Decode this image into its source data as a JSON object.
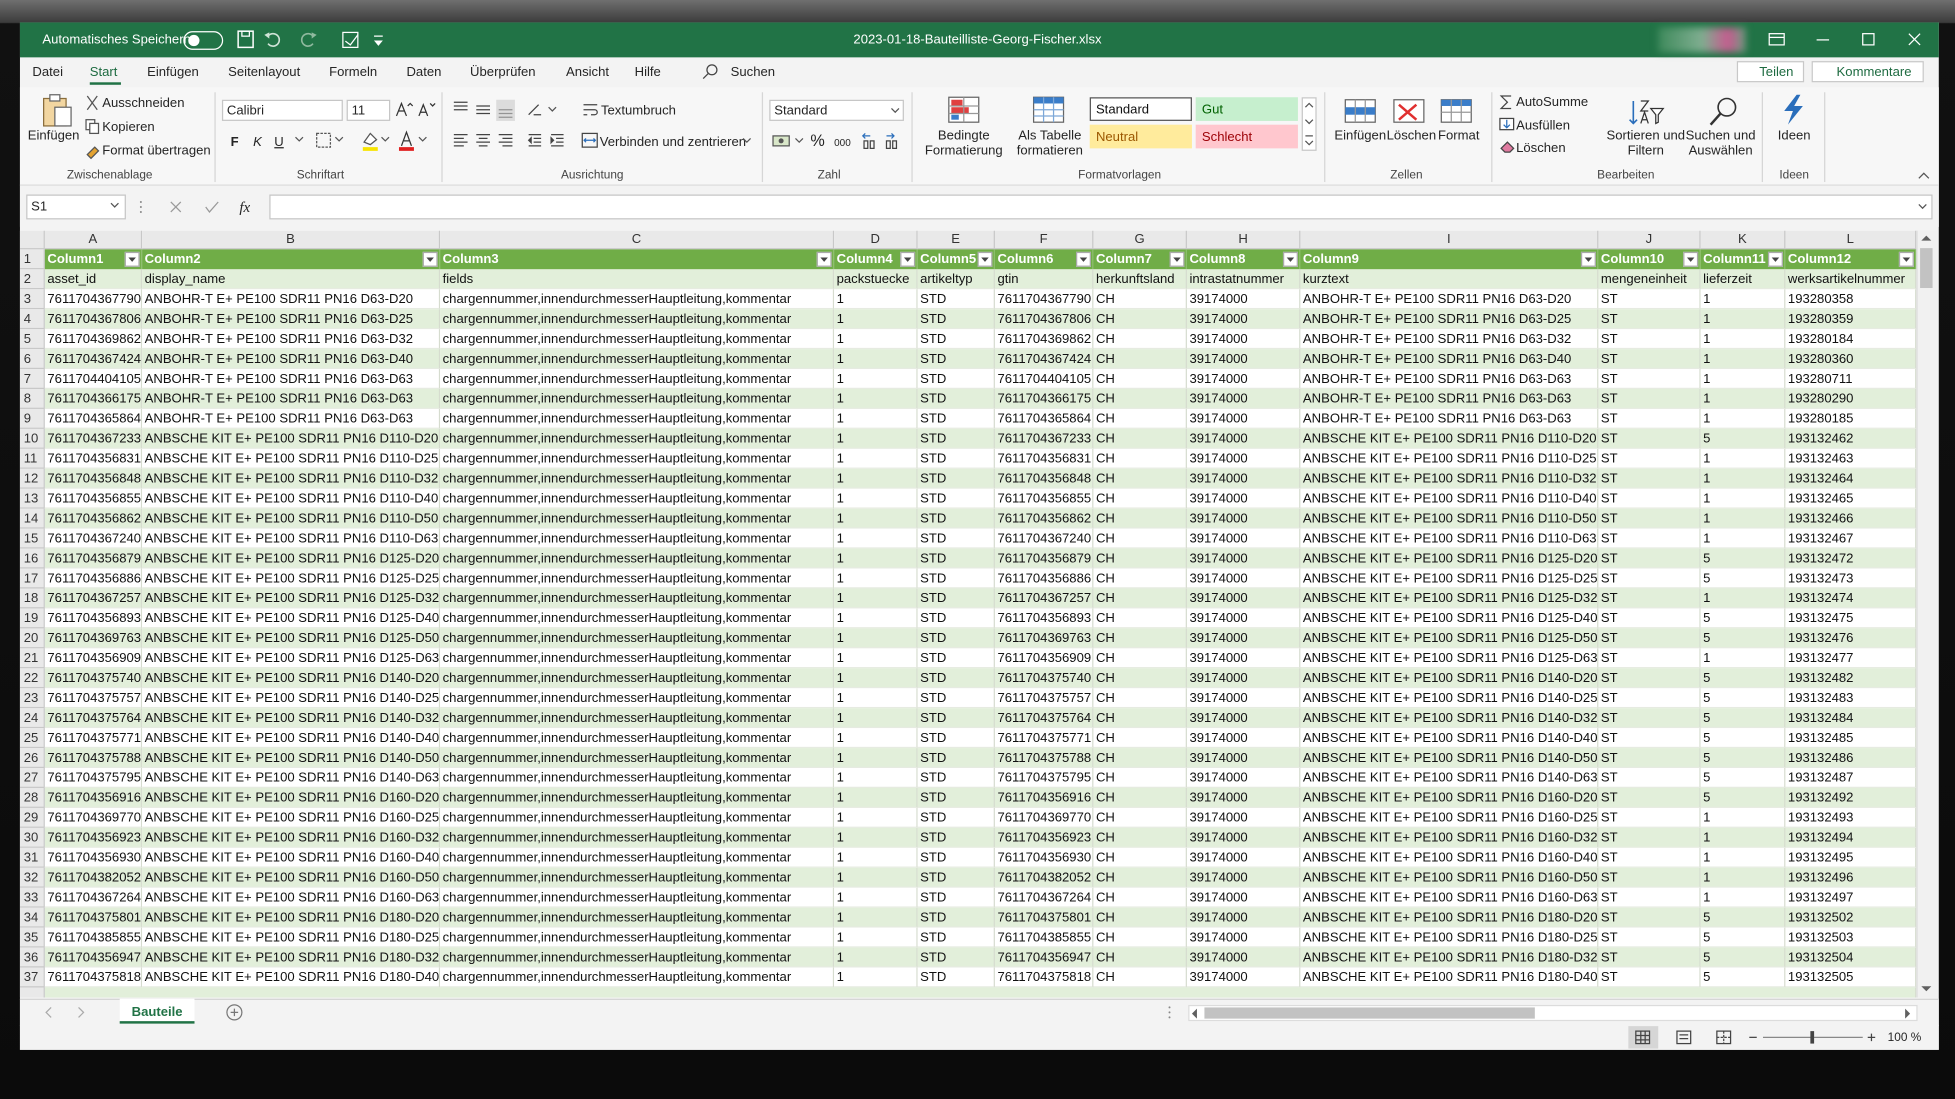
{
  "title_bar": {
    "autosave": "Automatisches Speichern",
    "filename": "2023-01-18-Bauteilliste-Georg-Fischer.xlsx"
  },
  "menu": {
    "tabs": [
      "Datei",
      "Start",
      "Einfügen",
      "Seitenlayout",
      "Formeln",
      "Daten",
      "Überprüfen",
      "Ansicht",
      "Hilfe"
    ],
    "search": "Suchen",
    "share": "Teilen",
    "comments": "Kommentare"
  },
  "ribbon": {
    "clipboard": {
      "paste": "Einfügen",
      "cut": "Ausschneiden",
      "copy": "Kopieren",
      "format_painter": "Format übertragen",
      "label": "Zwischenablage"
    },
    "font": {
      "name": "Calibri",
      "size": "11",
      "bold": "F",
      "italic": "K",
      "underline": "U",
      "label": "Schriftart"
    },
    "alignment": {
      "wrap": "Textumbruch",
      "merge": "Verbinden und zentrieren",
      "label": "Ausrichtung"
    },
    "number": {
      "format": "Standard",
      "percent": "%",
      "thousands": "000",
      "label": "Zahl"
    },
    "styles": {
      "conditional": "Bedingte Formatierung",
      "table": "Als Tabelle formatieren",
      "cells": [
        "Standard",
        "Gut",
        "Neutral",
        "Schlecht"
      ],
      "label": "Formatvorlagen"
    },
    "cells": {
      "insert": "Einfügen",
      "delete": "Löschen",
      "format": "Format",
      "label": "Zellen"
    },
    "editing": {
      "autosum": "AutoSumme",
      "fill": "Ausfüllen",
      "clear": "Löschen",
      "sort": "Sortieren und Filtern",
      "find": "Suchen und Auswählen",
      "label": "Bearbeiten"
    },
    "ideas": {
      "button": "Ideen",
      "label": "Ideen"
    }
  },
  "formula_bar": {
    "name_box": "S1",
    "fx": "fx"
  },
  "sheet": {
    "column_letters": [
      "A",
      "B",
      "C",
      "D",
      "E",
      "F",
      "G",
      "H",
      "I",
      "J",
      "K",
      "L"
    ],
    "row_numbers": [
      1,
      2,
      3,
      4,
      5,
      6,
      7,
      8,
      9,
      10,
      11,
      12,
      13,
      14,
      15,
      16,
      17,
      18,
      19,
      20,
      21,
      22,
      23,
      24,
      25,
      26,
      27,
      28,
      29,
      30,
      31,
      32,
      33,
      34,
      35,
      36,
      37
    ],
    "header_row": [
      "Column1",
      "Column2",
      "Column3",
      "Column4",
      "Column5",
      "Column6",
      "Column7",
      "Column8",
      "Column9",
      "Column10",
      "Column11",
      "Column12"
    ],
    "rows": [
      [
        "asset_id",
        "display_name",
        "fields",
        "packstuecke",
        "artikeltyp",
        "gtin",
        "herkunftsland",
        "intrastatnummer",
        "kurztext",
        "mengeneinheit",
        "lieferzeit",
        "werksartikelnummer"
      ],
      [
        "7611704367790",
        "ANBOHR-T E+ PE100 SDR11 PN16 D63-D20",
        "chargennummer,innendurchmesserHauptleitung,kommentar",
        "1",
        "STD",
        "7611704367790",
        "CH",
        "39174000",
        "ANBOHR-T E+ PE100 SDR11 PN16 D63-D20",
        "ST",
        "1",
        "193280358"
      ],
      [
        "7611704367806",
        "ANBOHR-T E+ PE100 SDR11 PN16 D63-D25",
        "chargennummer,innendurchmesserHauptleitung,kommentar",
        "1",
        "STD",
        "7611704367806",
        "CH",
        "39174000",
        "ANBOHR-T E+ PE100 SDR11 PN16 D63-D25",
        "ST",
        "1",
        "193280359"
      ],
      [
        "7611704369862",
        "ANBOHR-T E+ PE100 SDR11 PN16 D63-D32",
        "chargennummer,innendurchmesserHauptleitung,kommentar",
        "1",
        "STD",
        "7611704369862",
        "CH",
        "39174000",
        "ANBOHR-T E+ PE100 SDR11 PN16 D63-D32",
        "ST",
        "1",
        "193280184"
      ],
      [
        "7611704367424",
        "ANBOHR-T E+ PE100 SDR11 PN16 D63-D40",
        "chargennummer,innendurchmesserHauptleitung,kommentar",
        "1",
        "STD",
        "7611704367424",
        "CH",
        "39174000",
        "ANBOHR-T E+ PE100 SDR11 PN16 D63-D40",
        "ST",
        "1",
        "193280360"
      ],
      [
        "7611704404105",
        "ANBOHR-T E+ PE100 SDR11 PN16 D63-D63",
        "chargennummer,innendurchmesserHauptleitung,kommentar",
        "1",
        "STD",
        "7611704404105",
        "CH",
        "39174000",
        "ANBOHR-T E+ PE100 SDR11 PN16 D63-D63",
        "ST",
        "1",
        "193280711"
      ],
      [
        "7611704366175",
        "ANBOHR-T E+ PE100 SDR11 PN16 D63-D63",
        "chargennummer,innendurchmesserHauptleitung,kommentar",
        "1",
        "STD",
        "7611704366175",
        "CH",
        "39174000",
        "ANBOHR-T E+ PE100 SDR11 PN16 D63-D63",
        "ST",
        "1",
        "193280290"
      ],
      [
        "7611704365864",
        "ANBOHR-T E+ PE100 SDR11 PN16 D63-D63",
        "chargennummer,innendurchmesserHauptleitung,kommentar",
        "1",
        "STD",
        "7611704365864",
        "CH",
        "39174000",
        "ANBOHR-T E+ PE100 SDR11 PN16 D63-D63",
        "ST",
        "1",
        "193280185"
      ],
      [
        "7611704367233",
        "ANBSCHE KIT E+ PE100 SDR11 PN16 D110-D20",
        "chargennummer,innendurchmesserHauptleitung,kommentar",
        "1",
        "STD",
        "7611704367233",
        "CH",
        "39174000",
        "ANBSCHE KIT E+ PE100 SDR11 PN16 D110-D20",
        "ST",
        "5",
        "193132462"
      ],
      [
        "7611704356831",
        "ANBSCHE KIT E+ PE100 SDR11 PN16 D110-D25",
        "chargennummer,innendurchmesserHauptleitung,kommentar",
        "1",
        "STD",
        "7611704356831",
        "CH",
        "39174000",
        "ANBSCHE KIT E+ PE100 SDR11 PN16 D110-D25",
        "ST",
        "1",
        "193132463"
      ],
      [
        "7611704356848",
        "ANBSCHE KIT E+ PE100 SDR11 PN16 D110-D32",
        "chargennummer,innendurchmesserHauptleitung,kommentar",
        "1",
        "STD",
        "7611704356848",
        "CH",
        "39174000",
        "ANBSCHE KIT E+ PE100 SDR11 PN16 D110-D32",
        "ST",
        "1",
        "193132464"
      ],
      [
        "7611704356855",
        "ANBSCHE KIT E+ PE100 SDR11 PN16 D110-D40",
        "chargennummer,innendurchmesserHauptleitung,kommentar",
        "1",
        "STD",
        "7611704356855",
        "CH",
        "39174000",
        "ANBSCHE KIT E+ PE100 SDR11 PN16 D110-D40",
        "ST",
        "1",
        "193132465"
      ],
      [
        "7611704356862",
        "ANBSCHE KIT E+ PE100 SDR11 PN16 D110-D50",
        "chargennummer,innendurchmesserHauptleitung,kommentar",
        "1",
        "STD",
        "7611704356862",
        "CH",
        "39174000",
        "ANBSCHE KIT E+ PE100 SDR11 PN16 D110-D50",
        "ST",
        "1",
        "193132466"
      ],
      [
        "7611704367240",
        "ANBSCHE KIT E+ PE100 SDR11 PN16 D110-D63",
        "chargennummer,innendurchmesserHauptleitung,kommentar",
        "1",
        "STD",
        "7611704367240",
        "CH",
        "39174000",
        "ANBSCHE KIT E+ PE100 SDR11 PN16 D110-D63",
        "ST",
        "1",
        "193132467"
      ],
      [
        "7611704356879",
        "ANBSCHE KIT E+ PE100 SDR11 PN16 D125-D20",
        "chargennummer,innendurchmesserHauptleitung,kommentar",
        "1",
        "STD",
        "7611704356879",
        "CH",
        "39174000",
        "ANBSCHE KIT E+ PE100 SDR11 PN16 D125-D20",
        "ST",
        "5",
        "193132472"
      ],
      [
        "7611704356886",
        "ANBSCHE KIT E+ PE100 SDR11 PN16 D125-D25",
        "chargennummer,innendurchmesserHauptleitung,kommentar",
        "1",
        "STD",
        "7611704356886",
        "CH",
        "39174000",
        "ANBSCHE KIT E+ PE100 SDR11 PN16 D125-D25",
        "ST",
        "5",
        "193132473"
      ],
      [
        "7611704367257",
        "ANBSCHE KIT E+ PE100 SDR11 PN16 D125-D32",
        "chargennummer,innendurchmesserHauptleitung,kommentar",
        "1",
        "STD",
        "7611704367257",
        "CH",
        "39174000",
        "ANBSCHE KIT E+ PE100 SDR11 PN16 D125-D32",
        "ST",
        "1",
        "193132474"
      ],
      [
        "7611704356893",
        "ANBSCHE KIT E+ PE100 SDR11 PN16 D125-D40",
        "chargennummer,innendurchmesserHauptleitung,kommentar",
        "1",
        "STD",
        "7611704356893",
        "CH",
        "39174000",
        "ANBSCHE KIT E+ PE100 SDR11 PN16 D125-D40",
        "ST",
        "5",
        "193132475"
      ],
      [
        "7611704369763",
        "ANBSCHE KIT E+ PE100 SDR11 PN16 D125-D50",
        "chargennummer,innendurchmesserHauptleitung,kommentar",
        "1",
        "STD",
        "7611704369763",
        "CH",
        "39174000",
        "ANBSCHE KIT E+ PE100 SDR11 PN16 D125-D50",
        "ST",
        "5",
        "193132476"
      ],
      [
        "7611704356909",
        "ANBSCHE KIT E+ PE100 SDR11 PN16 D125-D63",
        "chargennummer,innendurchmesserHauptleitung,kommentar",
        "1",
        "STD",
        "7611704356909",
        "CH",
        "39174000",
        "ANBSCHE KIT E+ PE100 SDR11 PN16 D125-D63",
        "ST",
        "1",
        "193132477"
      ],
      [
        "7611704375740",
        "ANBSCHE KIT E+ PE100 SDR11 PN16 D140-D20",
        "chargennummer,innendurchmesserHauptleitung,kommentar",
        "1",
        "STD",
        "7611704375740",
        "CH",
        "39174000",
        "ANBSCHE KIT E+ PE100 SDR11 PN16 D140-D20",
        "ST",
        "5",
        "193132482"
      ],
      [
        "7611704375757",
        "ANBSCHE KIT E+ PE100 SDR11 PN16 D140-D25",
        "chargennummer,innendurchmesserHauptleitung,kommentar",
        "1",
        "STD",
        "7611704375757",
        "CH",
        "39174000",
        "ANBSCHE KIT E+ PE100 SDR11 PN16 D140-D25",
        "ST",
        "5",
        "193132483"
      ],
      [
        "7611704375764",
        "ANBSCHE KIT E+ PE100 SDR11 PN16 D140-D32",
        "chargennummer,innendurchmesserHauptleitung,kommentar",
        "1",
        "STD",
        "7611704375764",
        "CH",
        "39174000",
        "ANBSCHE KIT E+ PE100 SDR11 PN16 D140-D32",
        "ST",
        "5",
        "193132484"
      ],
      [
        "7611704375771",
        "ANBSCHE KIT E+ PE100 SDR11 PN16 D140-D40",
        "chargennummer,innendurchmesserHauptleitung,kommentar",
        "1",
        "STD",
        "7611704375771",
        "CH",
        "39174000",
        "ANBSCHE KIT E+ PE100 SDR11 PN16 D140-D40",
        "ST",
        "5",
        "193132485"
      ],
      [
        "7611704375788",
        "ANBSCHE KIT E+ PE100 SDR11 PN16 D140-D50",
        "chargennummer,innendurchmesserHauptleitung,kommentar",
        "1",
        "STD",
        "7611704375788",
        "CH",
        "39174000",
        "ANBSCHE KIT E+ PE100 SDR11 PN16 D140-D50",
        "ST",
        "5",
        "193132486"
      ],
      [
        "7611704375795",
        "ANBSCHE KIT E+ PE100 SDR11 PN16 D140-D63",
        "chargennummer,innendurchmesserHauptleitung,kommentar",
        "1",
        "STD",
        "7611704375795",
        "CH",
        "39174000",
        "ANBSCHE KIT E+ PE100 SDR11 PN16 D140-D63",
        "ST",
        "5",
        "193132487"
      ],
      [
        "7611704356916",
        "ANBSCHE KIT E+ PE100 SDR11 PN16 D160-D20",
        "chargennummer,innendurchmesserHauptleitung,kommentar",
        "1",
        "STD",
        "7611704356916",
        "CH",
        "39174000",
        "ANBSCHE KIT E+ PE100 SDR11 PN16 D160-D20",
        "ST",
        "5",
        "193132492"
      ],
      [
        "7611704369770",
        "ANBSCHE KIT E+ PE100 SDR11 PN16 D160-D25",
        "chargennummer,innendurchmesserHauptleitung,kommentar",
        "1",
        "STD",
        "7611704369770",
        "CH",
        "39174000",
        "ANBSCHE KIT E+ PE100 SDR11 PN16 D160-D25",
        "ST",
        "1",
        "193132493"
      ],
      [
        "7611704356923",
        "ANBSCHE KIT E+ PE100 SDR11 PN16 D160-D32",
        "chargennummer,innendurchmesserHauptleitung,kommentar",
        "1",
        "STD",
        "7611704356923",
        "CH",
        "39174000",
        "ANBSCHE KIT E+ PE100 SDR11 PN16 D160-D32",
        "ST",
        "1",
        "193132494"
      ],
      [
        "7611704356930",
        "ANBSCHE KIT E+ PE100 SDR11 PN16 D160-D40",
        "chargennummer,innendurchmesserHauptleitung,kommentar",
        "1",
        "STD",
        "7611704356930",
        "CH",
        "39174000",
        "ANBSCHE KIT E+ PE100 SDR11 PN16 D160-D40",
        "ST",
        "1",
        "193132495"
      ],
      [
        "7611704382052",
        "ANBSCHE KIT E+ PE100 SDR11 PN16 D160-D50",
        "chargennummer,innendurchmesserHauptleitung,kommentar",
        "1",
        "STD",
        "7611704382052",
        "CH",
        "39174000",
        "ANBSCHE KIT E+ PE100 SDR11 PN16 D160-D50",
        "ST",
        "1",
        "193132496"
      ],
      [
        "7611704367264",
        "ANBSCHE KIT E+ PE100 SDR11 PN16 D160-D63",
        "chargennummer,innendurchmesserHauptleitung,kommentar",
        "1",
        "STD",
        "7611704367264",
        "CH",
        "39174000",
        "ANBSCHE KIT E+ PE100 SDR11 PN16 D160-D63",
        "ST",
        "1",
        "193132497"
      ],
      [
        "7611704375801",
        "ANBSCHE KIT E+ PE100 SDR11 PN16 D180-D20",
        "chargennummer,innendurchmesserHauptleitung,kommentar",
        "1",
        "STD",
        "7611704375801",
        "CH",
        "39174000",
        "ANBSCHE KIT E+ PE100 SDR11 PN16 D180-D20",
        "ST",
        "5",
        "193132502"
      ],
      [
        "7611704385855",
        "ANBSCHE KIT E+ PE100 SDR11 PN16 D180-D25",
        "chargennummer,innendurchmesserHauptleitung,kommentar",
        "1",
        "STD",
        "7611704385855",
        "CH",
        "39174000",
        "ANBSCHE KIT E+ PE100 SDR11 PN16 D180-D25",
        "ST",
        "5",
        "193132503"
      ],
      [
        "7611704356947",
        "ANBSCHE KIT E+ PE100 SDR11 PN16 D180-D32",
        "chargennummer,innendurchmesserHauptleitung,kommentar",
        "1",
        "STD",
        "7611704356947",
        "CH",
        "39174000",
        "ANBSCHE KIT E+ PE100 SDR11 PN16 D180-D32",
        "ST",
        "5",
        "193132504"
      ],
      [
        "7611704375818",
        "ANBSCHE KIT E+ PE100 SDR11 PN16 D180-D40",
        "chargennummer,innendurchmesserHauptleitung,kommentar",
        "1",
        "STD",
        "7611704375818",
        "CH",
        "39174000",
        "ANBSCHE KIT E+ PE100 SDR11 PN16 D180-D40",
        "ST",
        "5",
        "193132505"
      ]
    ]
  },
  "tabs": {
    "sheet_tab": "Bauteile"
  },
  "status": {
    "zoom": "100 %"
  }
}
